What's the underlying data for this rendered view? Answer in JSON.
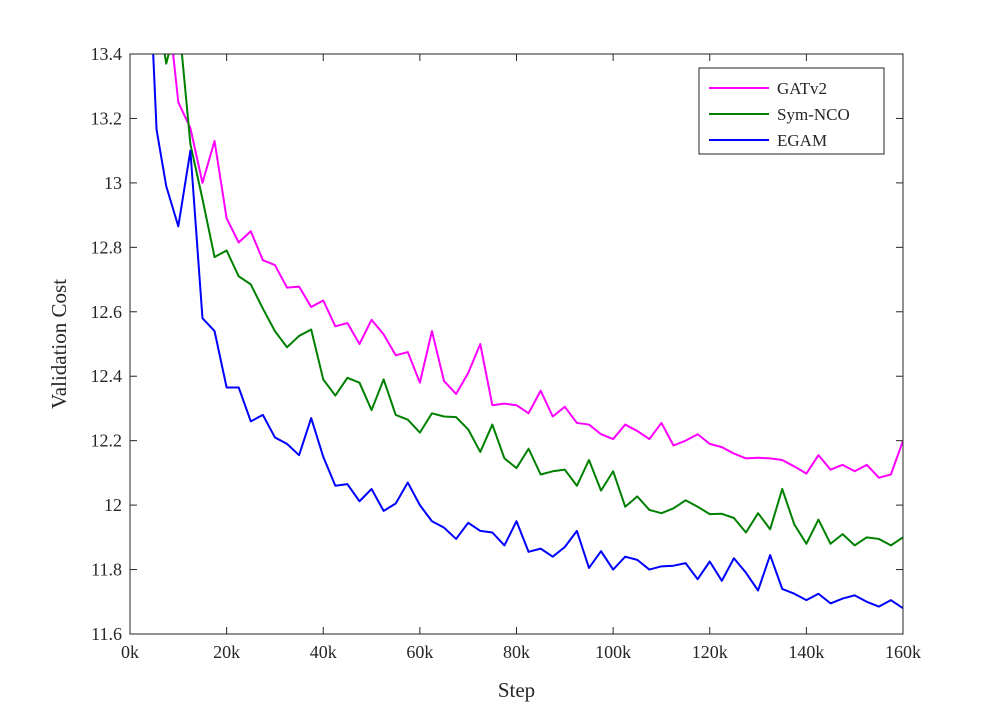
{
  "chart_data": {
    "type": "line",
    "xlabel": "Step",
    "ylabel": "Validation Cost",
    "xlim": [
      0,
      160000
    ],
    "ylim": [
      11.6,
      13.4
    ],
    "xticks": [
      {
        "value": 0,
        "label": "0k"
      },
      {
        "value": 20000,
        "label": "20k"
      },
      {
        "value": 40000,
        "label": "40k"
      },
      {
        "value": 60000,
        "label": "60k"
      },
      {
        "value": 80000,
        "label": "80k"
      },
      {
        "value": 100000,
        "label": "100k"
      },
      {
        "value": 120000,
        "label": "120k"
      },
      {
        "value": 140000,
        "label": "140k"
      },
      {
        "value": 160000,
        "label": "160k"
      }
    ],
    "yticks": [
      {
        "value": 11.6,
        "label": "11.6"
      },
      {
        "value": 11.8,
        "label": "11.8"
      },
      {
        "value": 12.0,
        "label": "12"
      },
      {
        "value": 12.2,
        "label": "12.2"
      },
      {
        "value": 12.4,
        "label": "12.4"
      },
      {
        "value": 12.6,
        "label": "12.6"
      },
      {
        "value": 12.8,
        "label": "12.8"
      },
      {
        "value": 13.0,
        "label": "13"
      },
      {
        "value": 13.2,
        "label": "13.2"
      },
      {
        "value": 13.4,
        "label": "13.4"
      }
    ],
    "grid": false,
    "legend_position": "top-right",
    "series": [
      {
        "name": "GATv2",
        "color": "#ff00ff",
        "points": [
          [
            7500,
            13.6
          ],
          [
            10000,
            13.25
          ],
          [
            12500,
            13.17
          ],
          [
            15000,
            13.0
          ],
          [
            17500,
            13.13
          ],
          [
            20000,
            12.89
          ],
          [
            22500,
            12.815
          ],
          [
            25000,
            12.85
          ],
          [
            27500,
            12.76
          ],
          [
            30000,
            12.745
          ],
          [
            32500,
            12.675
          ],
          [
            35000,
            12.678
          ],
          [
            37500,
            12.615
          ],
          [
            40000,
            12.635
          ],
          [
            42500,
            12.555
          ],
          [
            45000,
            12.565
          ],
          [
            47500,
            12.5
          ],
          [
            50000,
            12.575
          ],
          [
            52500,
            12.53
          ],
          [
            55000,
            12.465
          ],
          [
            57500,
            12.475
          ],
          [
            60000,
            12.38
          ],
          [
            62500,
            12.54
          ],
          [
            65000,
            12.385
          ],
          [
            67500,
            12.345
          ],
          [
            70000,
            12.41
          ],
          [
            72500,
            12.5
          ],
          [
            75000,
            12.31
          ],
          [
            77500,
            12.315
          ],
          [
            80000,
            12.31
          ],
          [
            82500,
            12.285
          ],
          [
            85000,
            12.355
          ],
          [
            87500,
            12.275
          ],
          [
            90000,
            12.305
          ],
          [
            92500,
            12.255
          ],
          [
            95000,
            12.25
          ],
          [
            97500,
            12.22
          ],
          [
            100000,
            12.205
          ],
          [
            102500,
            12.25
          ],
          [
            105000,
            12.23
          ],
          [
            107500,
            12.205
          ],
          [
            110000,
            12.255
          ],
          [
            112500,
            12.185
          ],
          [
            115000,
            12.2
          ],
          [
            117500,
            12.22
          ],
          [
            120000,
            12.19
          ],
          [
            122500,
            12.18
          ],
          [
            125000,
            12.16
          ],
          [
            127500,
            12.145
          ],
          [
            130000,
            12.147
          ],
          [
            132500,
            12.145
          ],
          [
            135000,
            12.14
          ],
          [
            137500,
            12.12
          ],
          [
            140000,
            12.098
          ],
          [
            142500,
            12.155
          ],
          [
            145000,
            12.11
          ],
          [
            147500,
            12.125
          ],
          [
            150000,
            12.105
          ],
          [
            152500,
            12.125
          ],
          [
            155000,
            12.085
          ],
          [
            157500,
            12.095
          ],
          [
            160000,
            12.2
          ]
        ]
      },
      {
        "name": "Sym-NCO",
        "color": "#008000",
        "points": [
          [
            5000,
            13.6
          ],
          [
            7500,
            13.37
          ],
          [
            10000,
            13.52
          ],
          [
            12500,
            13.12
          ],
          [
            15000,
            12.95
          ],
          [
            17500,
            12.77
          ],
          [
            20000,
            12.79
          ],
          [
            22500,
            12.71
          ],
          [
            25000,
            12.685
          ],
          [
            27500,
            12.61
          ],
          [
            30000,
            12.54
          ],
          [
            32500,
            12.49
          ],
          [
            35000,
            12.525
          ],
          [
            37500,
            12.545
          ],
          [
            40000,
            12.39
          ],
          [
            42500,
            12.34
          ],
          [
            45000,
            12.395
          ],
          [
            47500,
            12.38
          ],
          [
            50000,
            12.295
          ],
          [
            52500,
            12.39
          ],
          [
            55000,
            12.28
          ],
          [
            57500,
            12.265
          ],
          [
            60000,
            12.225
          ],
          [
            62500,
            12.285
          ],
          [
            65000,
            12.275
          ],
          [
            67500,
            12.273
          ],
          [
            70000,
            12.235
          ],
          [
            72500,
            12.165
          ],
          [
            75000,
            12.25
          ],
          [
            77500,
            12.145
          ],
          [
            80000,
            12.115
          ],
          [
            82500,
            12.175
          ],
          [
            85000,
            12.095
          ],
          [
            87500,
            12.105
          ],
          [
            90000,
            12.11
          ],
          [
            92500,
            12.06
          ],
          [
            95000,
            12.14
          ],
          [
            97500,
            12.045
          ],
          [
            100000,
            12.105
          ],
          [
            102500,
            11.995
          ],
          [
            105000,
            12.027
          ],
          [
            107500,
            11.985
          ],
          [
            110000,
            11.975
          ],
          [
            112500,
            11.99
          ],
          [
            115000,
            12.015
          ],
          [
            117500,
            11.995
          ],
          [
            120000,
            11.972
          ],
          [
            122500,
            11.973
          ],
          [
            125000,
            11.96
          ],
          [
            127500,
            11.915
          ],
          [
            130000,
            11.975
          ],
          [
            132500,
            11.925
          ],
          [
            135000,
            12.05
          ],
          [
            137500,
            11.94
          ],
          [
            140000,
            11.88
          ],
          [
            142500,
            11.955
          ],
          [
            145000,
            11.88
          ],
          [
            147500,
            11.91
          ],
          [
            150000,
            11.875
          ],
          [
            152500,
            11.9
          ],
          [
            155000,
            11.895
          ],
          [
            157500,
            11.875
          ],
          [
            160000,
            11.9
          ]
        ]
      },
      {
        "name": "EGAM",
        "color": "#0000ff",
        "points": [
          [
            4800,
            13.4
          ],
          [
            5500,
            13.165
          ],
          [
            7500,
            12.99
          ],
          [
            10000,
            12.865
          ],
          [
            12500,
            13.1
          ],
          [
            15000,
            12.58
          ],
          [
            17500,
            12.54
          ],
          [
            20000,
            12.365
          ],
          [
            22500,
            12.365
          ],
          [
            25000,
            12.26
          ],
          [
            27500,
            12.28
          ],
          [
            30000,
            12.21
          ],
          [
            32500,
            12.19
          ],
          [
            35000,
            12.155
          ],
          [
            37500,
            12.27
          ],
          [
            40000,
            12.15
          ],
          [
            42500,
            12.06
          ],
          [
            45000,
            12.065
          ],
          [
            47500,
            12.012
          ],
          [
            50000,
            12.05
          ],
          [
            52500,
            11.982
          ],
          [
            55000,
            12.005
          ],
          [
            57500,
            12.07
          ],
          [
            60000,
            12.0
          ],
          [
            62500,
            11.95
          ],
          [
            65000,
            11.93
          ],
          [
            67500,
            11.895
          ],
          [
            70000,
            11.945
          ],
          [
            72500,
            11.92
          ],
          [
            75000,
            11.915
          ],
          [
            77500,
            11.875
          ],
          [
            80000,
            11.95
          ],
          [
            82500,
            11.855
          ],
          [
            85000,
            11.865
          ],
          [
            87500,
            11.84
          ],
          [
            90000,
            11.87
          ],
          [
            92500,
            11.92
          ],
          [
            95000,
            11.805
          ],
          [
            97500,
            11.857
          ],
          [
            100000,
            11.8
          ],
          [
            102500,
            11.84
          ],
          [
            105000,
            11.83
          ],
          [
            107500,
            11.8
          ],
          [
            110000,
            11.81
          ],
          [
            112500,
            11.812
          ],
          [
            115000,
            11.82
          ],
          [
            117500,
            11.77
          ],
          [
            120000,
            11.825
          ],
          [
            122500,
            11.765
          ],
          [
            125000,
            11.835
          ],
          [
            127500,
            11.79
          ],
          [
            130000,
            11.735
          ],
          [
            132500,
            11.845
          ],
          [
            135000,
            11.74
          ],
          [
            137500,
            11.725
          ],
          [
            140000,
            11.705
          ],
          [
            142500,
            11.725
          ],
          [
            145000,
            11.695
          ],
          [
            147500,
            11.71
          ],
          [
            150000,
            11.72
          ],
          [
            152500,
            11.7
          ],
          [
            155000,
            11.685
          ],
          [
            157500,
            11.705
          ],
          [
            160000,
            11.68
          ]
        ]
      }
    ]
  }
}
